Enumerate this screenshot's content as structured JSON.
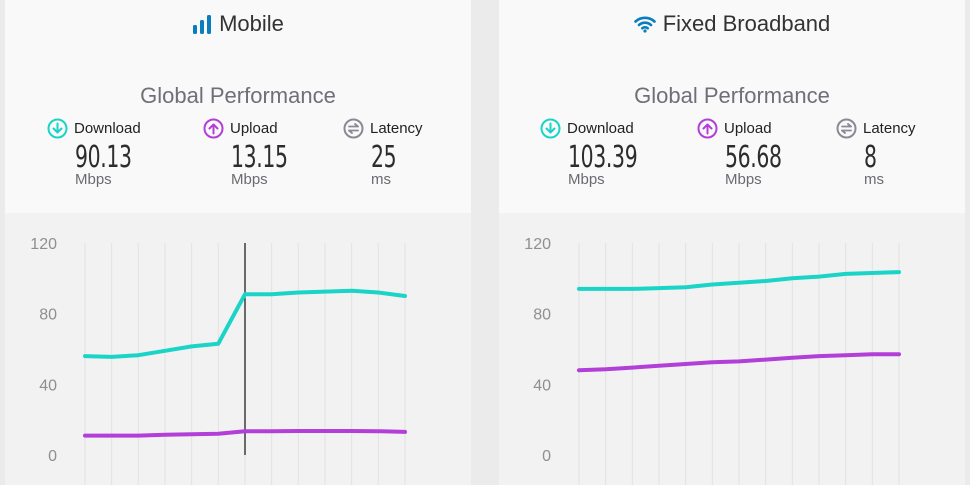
{
  "panels": [
    {
      "title": "Mobile",
      "icon": "signal-bars-icon",
      "subtitle": "Global Performance",
      "metrics": [
        {
          "label": "Download",
          "value": "90.13",
          "unit": "Mbps",
          "icon": "download-circle-icon",
          "color": "#1ad4c8"
        },
        {
          "label": "Upload",
          "value": "13.15",
          "unit": "Mbps",
          "icon": "upload-circle-icon",
          "color": "#b23fd8"
        },
        {
          "label": "Latency",
          "value": "25",
          "unit": "ms",
          "icon": "latency-circle-icon",
          "color": "#8a8a94"
        }
      ]
    },
    {
      "title": "Fixed Broadband",
      "icon": "wifi-icon",
      "subtitle": "Global Performance",
      "metrics": [
        {
          "label": "Download",
          "value": "103.39",
          "unit": "Mbps",
          "icon": "download-circle-icon",
          "color": "#1ad4c8"
        },
        {
          "label": "Upload",
          "value": "56.68",
          "unit": "Mbps",
          "icon": "upload-circle-icon",
          "color": "#b23fd8"
        },
        {
          "label": "Latency",
          "value": "8",
          "unit": "ms",
          "icon": "latency-circle-icon",
          "color": "#8a8a94"
        }
      ]
    }
  ],
  "colors": {
    "download": "#1ad4c8",
    "upload": "#b23fd8",
    "title_icon": "#0a7dbe"
  },
  "chart_data": [
    {
      "type": "line",
      "ylim": [
        0,
        120
      ],
      "yticks": [
        0,
        40,
        80,
        120
      ],
      "grid": "vertical",
      "x": [
        1,
        2,
        3,
        4,
        5,
        6,
        7,
        8,
        9,
        10,
        11,
        12,
        13
      ],
      "hover_index": 7,
      "series": [
        {
          "key": "download",
          "values": [
            56,
            55.5,
            56.5,
            59,
            61.5,
            63,
            91,
            91,
            92,
            92.5,
            93,
            92,
            90
          ]
        },
        {
          "key": "upload",
          "values": [
            11,
            11,
            11,
            11.5,
            11.7,
            12,
            13.5,
            13.5,
            13.6,
            13.6,
            13.6,
            13.5,
            13.1
          ]
        }
      ]
    },
    {
      "type": "line",
      "ylim": [
        0,
        120
      ],
      "yticks": [
        0,
        40,
        80,
        120
      ],
      "grid": "vertical",
      "x": [
        1,
        2,
        3,
        4,
        5,
        6,
        7,
        8,
        9,
        10,
        11,
        12,
        13
      ],
      "series": [
        {
          "key": "download",
          "values": [
            94,
            94,
            94,
            94.5,
            95,
            96.5,
            97.5,
            98.5,
            100,
            101,
            102.5,
            103,
            103.5
          ]
        },
        {
          "key": "upload",
          "values": [
            48,
            48.5,
            49.5,
            50.5,
            51.5,
            52.5,
            53,
            54,
            55,
            56,
            56.5,
            57,
            57
          ]
        }
      ]
    }
  ]
}
